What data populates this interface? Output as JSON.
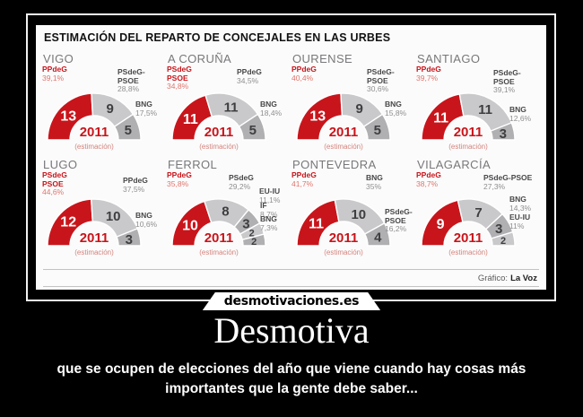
{
  "poster": {
    "title": "Desmotiva",
    "caption": "que se ocupen de elecciones del año que viene cuando hay cosas más\nimportantes que  la gente debe saber...",
    "watermark": "desmotivaciones.es"
  },
  "infographic": {
    "title": "ESTIMACIÓN DEL REPARTO DE CONCEJALES EN LAS URBES",
    "credit_label": "Gráfico:",
    "credit_name": "La Voz",
    "center_year": "2011",
    "center_note": "(estimación)"
  },
  "colors": {
    "accent_red": "#c8151b",
    "pct_red": "#e0756e",
    "gray_light": "#c9c9cb",
    "gray_dark": "#b0b0b2",
    "seat_gray_text": "#3e3e41",
    "note_red": "#d4827c"
  },
  "chart_data": [
    {
      "type": "pie",
      "variant": "semi-donut",
      "city": "VIGO",
      "total_seats": 27,
      "segments": [
        {
          "party": "PPdeG",
          "pct": "39,1%",
          "seats": 13,
          "highlight": true
        },
        {
          "party": "PSdeG-PSOE",
          "pct": "28,8%",
          "seats": 9
        },
        {
          "party": "BNG",
          "pct": "17,5%",
          "seats": 5
        }
      ]
    },
    {
      "type": "pie",
      "variant": "semi-donut",
      "city": "A CORUÑA",
      "total_seats": 27,
      "segments": [
        {
          "party": "PSdeG\nPSOE",
          "pct": "34,8%",
          "seats": 11,
          "highlight": true
        },
        {
          "party": "PPdeG",
          "pct": "34,5%",
          "seats": 11
        },
        {
          "party": "BNG",
          "pct": "18,4%",
          "seats": 5
        }
      ]
    },
    {
      "type": "pie",
      "variant": "semi-donut",
      "city": "OURENSE",
      "total_seats": 27,
      "segments": [
        {
          "party": "PPdeG",
          "pct": "40,4%",
          "seats": 13,
          "highlight": true
        },
        {
          "party": "PSdeG-PSOE",
          "pct": "30,6%",
          "seats": 9
        },
        {
          "party": "BNG",
          "pct": "15,8%",
          "seats": 5
        }
      ]
    },
    {
      "type": "pie",
      "variant": "semi-donut",
      "city": "SANTIAGO",
      "total_seats": 25,
      "segments": [
        {
          "party": "PPdeG",
          "pct": "39,7%",
          "seats": 11,
          "highlight": true
        },
        {
          "party": "PSdeG-PSOE",
          "pct": "39,1%",
          "seats": 11
        },
        {
          "party": "BNG",
          "pct": "12,6%",
          "seats": 3
        }
      ]
    },
    {
      "type": "pie",
      "variant": "semi-donut",
      "city": "LUGO",
      "total_seats": 25,
      "segments": [
        {
          "party": "PSdeG\nPSOE",
          "pct": "44,6%",
          "seats": 12,
          "highlight": true
        },
        {
          "party": "PPdeG",
          "pct": "37,5%",
          "seats": 10
        },
        {
          "party": "BNG",
          "pct": "10,6%",
          "seats": 3
        }
      ]
    },
    {
      "type": "pie",
      "variant": "semi-donut",
      "city": "FERROL",
      "total_seats": 25,
      "segments": [
        {
          "party": "PPdeG",
          "pct": "35,8%",
          "seats": 10,
          "highlight": true
        },
        {
          "party": "PSdeG",
          "pct": "29,2%",
          "seats": 8
        },
        {
          "party": "EU-IU",
          "pct": "11,1%",
          "seats": 3
        },
        {
          "party": "IF",
          "pct": "8,7%",
          "seats": 2
        },
        {
          "party": "BNG",
          "pct": "7,3%",
          "seats": 2
        }
      ]
    },
    {
      "type": "pie",
      "variant": "semi-donut",
      "city": "PONTEVEDRA",
      "total_seats": 25,
      "segments": [
        {
          "party": "PPdeG",
          "pct": "41,7%",
          "seats": 11,
          "highlight": true
        },
        {
          "party": "BNG",
          "pct": "35%",
          "seats": 10
        },
        {
          "party": "PSdeG-\nPSOE",
          "pct": "16,2%",
          "seats": 4
        }
      ]
    },
    {
      "type": "pie",
      "variant": "semi-donut",
      "city": "VILAGARCÍA",
      "total_seats": 21,
      "segments": [
        {
          "party": "PPdeG",
          "pct": "38,7%",
          "seats": 9,
          "highlight": true
        },
        {
          "party": "PSdeG-PSOE",
          "pct": "27,3%",
          "seats": 7
        },
        {
          "party": "BNG",
          "pct": "14,3%",
          "seats": 3
        },
        {
          "party": "EU-IU",
          "pct": "11%",
          "seats": 2
        }
      ]
    }
  ]
}
